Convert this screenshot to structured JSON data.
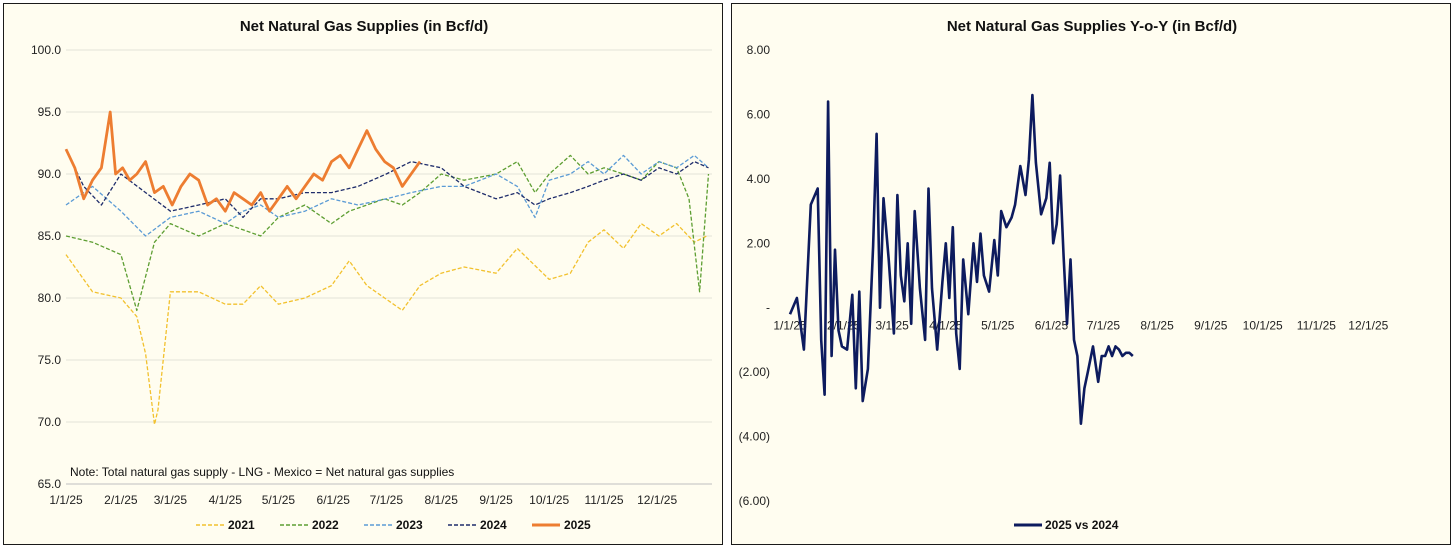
{
  "chart_data": [
    {
      "type": "line",
      "title": "Net Natural Gas Supplies (in Bcf/d)",
      "xlabel": "",
      "ylabel": "",
      "ylim": [
        65.0,
        100.0
      ],
      "yticks": [
        "100.0",
        "95.0",
        "90.0",
        "85.0",
        "80.0",
        "75.0",
        "70.0",
        "65.0"
      ],
      "x_ticks": [
        "1/1/25",
        "2/1/25",
        "3/1/25",
        "4/1/25",
        "5/1/25",
        "6/1/25",
        "7/1/25",
        "8/1/25",
        "9/1/25",
        "10/1/25",
        "11/1/25",
        "12/1/25"
      ],
      "x_range_days": [
        0,
        365
      ],
      "grid": "horizontal",
      "legend_position": "bottom",
      "note": "Note: Total natural gas supply - LNG - Mexico = Net natural gas supplies",
      "series": [
        {
          "name": "2021",
          "color": "#f2c12e",
          "style": "dashed",
          "x_days": [
            0,
            15,
            31,
            40,
            45,
            50,
            52,
            59,
            75,
            90,
            100,
            110,
            120,
            135,
            150,
            160,
            170,
            180,
            190,
            200,
            212,
            225,
            243,
            255,
            273,
            285,
            295,
            304,
            315,
            325,
            335,
            345,
            355,
            362
          ],
          "values": [
            83.5,
            80.5,
            80.0,
            78.5,
            75.5,
            69.8,
            71.0,
            80.5,
            80.5,
            79.5,
            79.5,
            81.0,
            79.5,
            80.0,
            81.0,
            83.0,
            81.0,
            80.0,
            79.0,
            81.0,
            82.0,
            82.5,
            82.0,
            84.0,
            81.5,
            82.0,
            84.5,
            85.5,
            84.0,
            86.0,
            85.0,
            86.0,
            84.5,
            85.0
          ]
        },
        {
          "name": "2022",
          "color": "#5d9e32",
          "style": "dashed",
          "x_days": [
            0,
            15,
            31,
            40,
            50,
            59,
            75,
            90,
            100,
            110,
            120,
            135,
            150,
            160,
            170,
            180,
            190,
            200,
            212,
            225,
            243,
            255,
            265,
            273,
            285,
            295,
            304,
            315,
            325,
            335,
            345,
            352,
            358,
            363
          ],
          "values": [
            85.0,
            84.5,
            83.5,
            79.0,
            84.5,
            86.0,
            85.0,
            86.0,
            85.5,
            85.0,
            86.5,
            87.5,
            86.0,
            87.0,
            87.5,
            88.0,
            87.5,
            88.5,
            90.0,
            89.5,
            90.0,
            91.0,
            88.5,
            90.0,
            91.5,
            90.0,
            90.5,
            90.0,
            89.5,
            91.0,
            90.5,
            88.0,
            80.5,
            90.0
          ]
        },
        {
          "name": "2023",
          "color": "#5b9bd5",
          "style": "dashed",
          "x_days": [
            0,
            15,
            31,
            45,
            59,
            75,
            90,
            100,
            110,
            120,
            135,
            150,
            165,
            181,
            195,
            212,
            225,
            243,
            255,
            265,
            273,
            285,
            295,
            304,
            315,
            325,
            335,
            345,
            355,
            363
          ],
          "values": [
            87.5,
            89.0,
            87.0,
            85.0,
            86.5,
            87.0,
            86.0,
            87.0,
            87.5,
            86.5,
            87.0,
            88.0,
            87.5,
            88.0,
            88.5,
            89.0,
            89.0,
            90.0,
            89.0,
            86.5,
            89.5,
            90.0,
            91.0,
            90.0,
            91.5,
            90.0,
            91.0,
            90.5,
            91.5,
            90.5
          ]
        },
        {
          "name": "2024",
          "color": "#1f2d6b",
          "style": "dashed",
          "x_days": [
            0,
            10,
            20,
            31,
            45,
            59,
            75,
            90,
            100,
            110,
            120,
            135,
            150,
            165,
            181,
            195,
            212,
            225,
            243,
            255,
            265,
            273,
            285,
            295,
            304,
            315,
            325,
            335,
            345,
            355,
            363
          ],
          "values": [
            92.0,
            89.0,
            87.5,
            90.0,
            88.5,
            87.0,
            87.5,
            88.0,
            86.5,
            88.0,
            88.0,
            88.5,
            88.5,
            89.0,
            90.0,
            91.0,
            90.5,
            89.0,
            88.0,
            88.5,
            87.5,
            88.0,
            88.5,
            89.0,
            89.5,
            90.0,
            89.5,
            90.5,
            90.0,
            91.0,
            90.5
          ]
        },
        {
          "name": "2025",
          "color": "#ed7d31",
          "style": "solid",
          "x_days": [
            0,
            5,
            10,
            15,
            20,
            25,
            28,
            32,
            36,
            40,
            45,
            50,
            55,
            60,
            65,
            70,
            75,
            80,
            85,
            90,
            95,
            100,
            105,
            110,
            115,
            120,
            125,
            130,
            135,
            140,
            145,
            150,
            155,
            160,
            165,
            170,
            175,
            180,
            185,
            190,
            195,
            200
          ],
          "values": [
            92.0,
            90.5,
            88.0,
            89.5,
            90.5,
            95.0,
            90.0,
            90.5,
            89.5,
            90.0,
            91.0,
            88.5,
            89.0,
            87.5,
            89.0,
            90.0,
            89.5,
            87.5,
            88.0,
            87.0,
            88.5,
            88.0,
            87.5,
            88.5,
            87.0,
            88.0,
            89.0,
            88.0,
            89.0,
            90.0,
            89.5,
            91.0,
            91.5,
            90.5,
            92.0,
            93.5,
            92.0,
            91.0,
            90.5,
            89.0,
            90.0,
            91.0
          ]
        }
      ]
    },
    {
      "type": "line",
      "title": "Net Natural Gas Supplies Y-o-Y (in Bcf/d)",
      "xlabel": "",
      "ylabel": "",
      "ylim": [
        -6.0,
        8.0
      ],
      "yticks": [
        "8.00",
        "6.00",
        "4.00",
        "2.00",
        "-",
        "(2.00)",
        "(4.00)",
        "(6.00)"
      ],
      "x_ticks": [
        "1/1/25",
        "2/1/25",
        "3/1/25",
        "4/1/25",
        "5/1/25",
        "6/1/25",
        "7/1/25",
        "8/1/25",
        "9/1/25",
        "10/1/25",
        "11/1/25",
        "12/1/25"
      ],
      "x_range_days": [
        0,
        365
      ],
      "grid": "none",
      "legend_position": "bottom",
      "series": [
        {
          "name": "2025 vs 2024",
          "color": "#0d1b5e",
          "style": "solid",
          "x_days": [
            0,
            4,
            8,
            12,
            16,
            18,
            20,
            22,
            24,
            26,
            28,
            30,
            33,
            36,
            38,
            40,
            42,
            45,
            48,
            50,
            52,
            54,
            57,
            60,
            62,
            64,
            66,
            68,
            70,
            72,
            75,
            78,
            80,
            82,
            85,
            88,
            90,
            92,
            94,
            96,
            98,
            100,
            103,
            106,
            108,
            110,
            112,
            115,
            118,
            120,
            122,
            125,
            128,
            130,
            133,
            136,
            138,
            140,
            142,
            145,
            148,
            150,
            152,
            154,
            156,
            158,
            160,
            162,
            164,
            166,
            168,
            170,
            172,
            175,
            178,
            180,
            182,
            184,
            186,
            188,
            190,
            192,
            194,
            196,
            198
          ],
          "values": [
            -0.2,
            0.3,
            -1.3,
            3.2,
            3.7,
            -1.0,
            -2.7,
            6.4,
            -1.5,
            1.8,
            -0.7,
            -1.2,
            -1.3,
            0.4,
            -2.5,
            0.5,
            -2.9,
            -1.9,
            1.9,
            5.4,
            0.0,
            3.4,
            1.5,
            -0.8,
            3.5,
            1.0,
            0.2,
            2.0,
            -0.5,
            3.0,
            0.6,
            -1.0,
            3.7,
            0.6,
            -1.3,
            0.8,
            2.0,
            0.3,
            2.5,
            -0.8,
            -1.9,
            1.5,
            -0.2,
            2.0,
            0.8,
            2.3,
            1.0,
            0.5,
            2.1,
            1.0,
            3.0,
            2.5,
            2.8,
            3.2,
            4.4,
            3.5,
            4.6,
            6.6,
            4.5,
            2.9,
            3.4,
            4.5,
            2.0,
            2.6,
            4.1,
            1.6,
            -0.5,
            1.5,
            -1.0,
            -1.5,
            -3.6,
            -2.5,
            -2.0,
            -1.2,
            -2.3,
            -1.5,
            -1.5,
            -1.2,
            -1.5,
            -1.2,
            -1.3,
            -1.5,
            -1.4,
            -1.4,
            -1.5
          ]
        }
      ]
    }
  ]
}
